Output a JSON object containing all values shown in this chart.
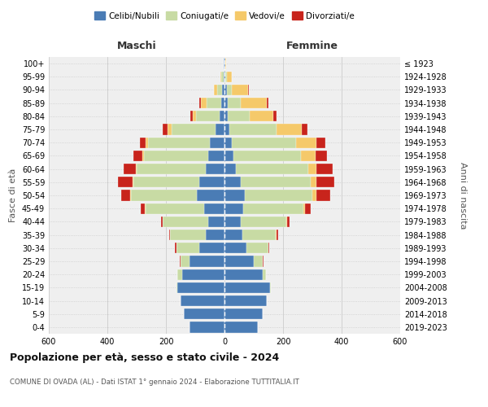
{
  "age_groups": [
    "0-4",
    "5-9",
    "10-14",
    "15-19",
    "20-24",
    "25-29",
    "30-34",
    "35-39",
    "40-44",
    "45-49",
    "50-54",
    "55-59",
    "60-64",
    "65-69",
    "70-74",
    "75-79",
    "80-84",
    "85-89",
    "90-94",
    "95-99",
    "100+"
  ],
  "birth_years": [
    "2019-2023",
    "2014-2018",
    "2009-2013",
    "2004-2008",
    "1999-2003",
    "1994-1998",
    "1989-1993",
    "1984-1988",
    "1979-1983",
    "1974-1978",
    "1969-1973",
    "1964-1968",
    "1959-1963",
    "1954-1958",
    "1949-1953",
    "1944-1948",
    "1939-1943",
    "1934-1938",
    "1929-1933",
    "1924-1928",
    "≤ 1923"
  ],
  "males": {
    "celibi": [
      120,
      140,
      150,
      160,
      145,
      120,
      85,
      65,
      55,
      70,
      95,
      85,
      65,
      55,
      50,
      30,
      18,
      10,
      8,
      4,
      2
    ],
    "coniugati": [
      0,
      0,
      0,
      5,
      15,
      30,
      80,
      120,
      155,
      200,
      225,
      225,
      235,
      220,
      210,
      150,
      80,
      50,
      18,
      8,
      2
    ],
    "vedovi": [
      0,
      0,
      0,
      0,
      0,
      0,
      0,
      0,
      0,
      1,
      2,
      3,
      4,
      5,
      10,
      15,
      10,
      20,
      10,
      2,
      0
    ],
    "divorziati": [
      0,
      0,
      0,
      0,
      0,
      2,
      5,
      5,
      8,
      15,
      30,
      50,
      40,
      30,
      20,
      15,
      10,
      5,
      0,
      0,
      0
    ]
  },
  "females": {
    "nubili": [
      115,
      130,
      145,
      155,
      130,
      100,
      75,
      60,
      55,
      65,
      70,
      55,
      40,
      30,
      25,
      18,
      12,
      10,
      8,
      4,
      2
    ],
    "coniugate": [
      0,
      0,
      0,
      3,
      12,
      30,
      75,
      115,
      155,
      205,
      230,
      240,
      245,
      230,
      220,
      160,
      75,
      45,
      18,
      5,
      1
    ],
    "vedove": [
      0,
      0,
      0,
      0,
      0,
      0,
      0,
      2,
      3,
      5,
      15,
      20,
      30,
      50,
      70,
      85,
      80,
      90,
      55,
      15,
      2
    ],
    "divorziate": [
      0,
      0,
      0,
      0,
      0,
      2,
      3,
      5,
      10,
      20,
      45,
      60,
      55,
      40,
      30,
      20,
      10,
      5,
      2,
      0,
      0
    ]
  },
  "colors": {
    "celibi": "#4a7cb5",
    "coniugati": "#c8dba4",
    "vedovi": "#f5c96a",
    "divorziati": "#c8241c"
  },
  "title": "Popolazione per età, sesso e stato civile - 2024",
  "subtitle": "COMUNE DI OVADA (AL) - Dati ISTAT 1° gennaio 2024 - Elaborazione TUTTITALIA.IT",
  "xlabel_left": "Maschi",
  "xlabel_right": "Femmine",
  "ylabel_left": "Fasce di età",
  "ylabel_right": "Anni di nascita",
  "xlim": 600,
  "legend_labels": [
    "Celibi/Nubili",
    "Coniugati/e",
    "Vedovi/e",
    "Divorziati/e"
  ],
  "background_color": "#ffffff",
  "grid_color": "#cccccc",
  "plot_bg": "#efefef"
}
